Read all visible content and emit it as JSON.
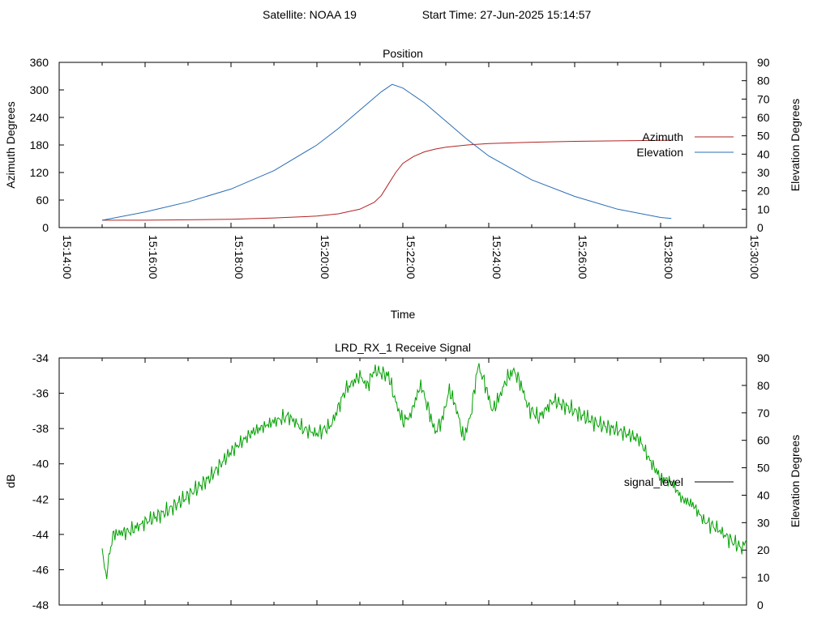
{
  "header": {
    "satellite": "Satellite: NOAA 19",
    "start_time": "Start Time: 27-Jun-2025 15:14:57"
  },
  "colors": {
    "azimuth": "#b22222",
    "elevation": "#2a6db5",
    "signal": "#00a000",
    "legend_signal": "#000000"
  },
  "chart_data": [
    {
      "type": "line",
      "title": "Position",
      "xlabel": "Time",
      "ylabel": "Azimuth Degrees",
      "y2label": "Elevation Degrees",
      "x_ticks": [
        "15:14:00",
        "15:16:00",
        "15:18:00",
        "15:20:00",
        "15:22:00",
        "15:24:00",
        "15:26:00",
        "15:28:00",
        "15:30:00"
      ],
      "y_ticks": [
        "0",
        "60",
        "120",
        "180",
        "240",
        "300",
        "360"
      ],
      "y2_ticks": [
        "0",
        "10",
        "20",
        "30",
        "40",
        "50",
        "60",
        "70",
        "80",
        "90"
      ],
      "xlim": [
        "15:14:00",
        "15:30:00"
      ],
      "ylim": [
        0,
        360
      ],
      "y2lim": [
        0,
        90
      ],
      "legend_position": "right",
      "series": [
        {
          "name": "Azimuth",
          "axis": "y",
          "points": [
            [
              "15:15:00",
              16
            ],
            [
              "15:16:00",
              16
            ],
            [
              "15:17:00",
              17
            ],
            [
              "15:18:00",
              18
            ],
            [
              "15:19:00",
              21
            ],
            [
              "15:20:00",
              25
            ],
            [
              "15:20:30",
              30
            ],
            [
              "15:21:00",
              40
            ],
            [
              "15:21:20",
              55
            ],
            [
              "15:21:30",
              70
            ],
            [
              "15:21:40",
              95
            ],
            [
              "15:21:50",
              120
            ],
            [
              "15:22:00",
              140
            ],
            [
              "15:22:15",
              155
            ],
            [
              "15:22:30",
              165
            ],
            [
              "15:22:45",
              171
            ],
            [
              "15:23:00",
              175
            ],
            [
              "15:23:30",
              180
            ],
            [
              "15:24:00",
              183
            ],
            [
              "15:25:00",
              186
            ],
            [
              "15:26:00",
              188
            ],
            [
              "15:27:00",
              189
            ],
            [
              "15:28:00",
              190
            ],
            [
              "15:28:15",
              190
            ]
          ]
        },
        {
          "name": "Elevation",
          "axis": "y2",
          "points": [
            [
              "15:15:00",
              4
            ],
            [
              "15:16:00",
              8.5
            ],
            [
              "15:17:00",
              14
            ],
            [
              "15:18:00",
              21
            ],
            [
              "15:19:00",
              31
            ],
            [
              "15:20:00",
              45
            ],
            [
              "15:20:30",
              54
            ],
            [
              "15:21:00",
              64
            ],
            [
              "15:21:30",
              74
            ],
            [
              "15:21:45",
              78
            ],
            [
              "15:22:00",
              76
            ],
            [
              "15:22:30",
              68
            ],
            [
              "15:23:00",
              58
            ],
            [
              "15:23:30",
              48
            ],
            [
              "15:24:00",
              39
            ],
            [
              "15:25:00",
              26
            ],
            [
              "15:26:00",
              17
            ],
            [
              "15:27:00",
              10
            ],
            [
              "15:28:00",
              5.5
            ],
            [
              "15:28:15",
              5
            ]
          ]
        }
      ]
    },
    {
      "type": "line",
      "title": "LRD_RX_1 Receive Signal",
      "ylabel": "dB",
      "y2label": "Elevation Degrees",
      "y_ticks": [
        "-34",
        "-36",
        "-38",
        "-40",
        "-42",
        "-44",
        "-46",
        "-48"
      ],
      "y2_ticks": [
        "0",
        "10",
        "20",
        "30",
        "40",
        "50",
        "60",
        "70",
        "80",
        "90"
      ],
      "xlim": [
        "15:14:00",
        "15:30:00"
      ],
      "ylim": [
        -48,
        -34
      ],
      "y2lim": [
        0,
        90
      ],
      "legend_position": "right",
      "series": [
        {
          "name": "signal_level",
          "axis": "y",
          "points": [
            [
              "15:15:00",
              -44.6
            ],
            [
              "15:15:05",
              -46.5
            ],
            [
              "15:15:15",
              -44.0
            ],
            [
              "15:15:40",
              -43.8
            ],
            [
              "15:16:00",
              -43.3
            ],
            [
              "15:16:30",
              -42.7
            ],
            [
              "15:17:00",
              -41.8
            ],
            [
              "15:17:30",
              -40.8
            ],
            [
              "15:18:00",
              -39.3
            ],
            [
              "15:18:30",
              -38.2
            ],
            [
              "15:19:00",
              -37.6
            ],
            [
              "15:19:20",
              -37.3
            ],
            [
              "15:19:40",
              -38.0
            ],
            [
              "15:20:00",
              -38.3
            ],
            [
              "15:20:20",
              -37.8
            ],
            [
              "15:20:40",
              -35.8
            ],
            [
              "15:21:00",
              -35.0
            ],
            [
              "15:21:10",
              -35.6
            ],
            [
              "15:21:20",
              -34.7
            ],
            [
              "15:21:40",
              -35.0
            ],
            [
              "15:21:50",
              -36.5
            ],
            [
              "15:22:00",
              -37.6
            ],
            [
              "15:22:10",
              -37.3
            ],
            [
              "15:22:25",
              -35.5
            ],
            [
              "15:22:35",
              -36.8
            ],
            [
              "15:22:45",
              -38.2
            ],
            [
              "15:22:55",
              -37.5
            ],
            [
              "15:23:05",
              -35.8
            ],
            [
              "15:23:15",
              -36.9
            ],
            [
              "15:23:25",
              -38.6
            ],
            [
              "15:23:35",
              -37.2
            ],
            [
              "15:23:45",
              -34.4
            ],
            [
              "15:23:55",
              -35.5
            ],
            [
              "15:24:05",
              -37.0
            ],
            [
              "15:24:15",
              -36.2
            ],
            [
              "15:24:25",
              -35.2
            ],
            [
              "15:24:35",
              -34.7
            ],
            [
              "15:24:45",
              -35.5
            ],
            [
              "15:24:55",
              -36.8
            ],
            [
              "15:25:10",
              -37.4
            ],
            [
              "15:25:30",
              -36.4
            ],
            [
              "15:26:00",
              -37.0
            ],
            [
              "15:26:30",
              -37.7
            ],
            [
              "15:27:00",
              -38.1
            ],
            [
              "15:27:30",
              -38.6
            ],
            [
              "15:27:45",
              -39.8
            ],
            [
              "15:28:00",
              -40.8
            ],
            [
              "15:28:15",
              -41.0
            ],
            [
              "15:28:30",
              -42.0
            ],
            [
              "15:28:45",
              -42.3
            ],
            [
              "15:29:00",
              -43.2
            ],
            [
              "15:29:20",
              -43.7
            ],
            [
              "15:29:40",
              -44.4
            ],
            [
              "15:29:55",
              -44.8
            ],
            [
              "15:30:00",
              -44.3
            ]
          ]
        }
      ]
    }
  ]
}
